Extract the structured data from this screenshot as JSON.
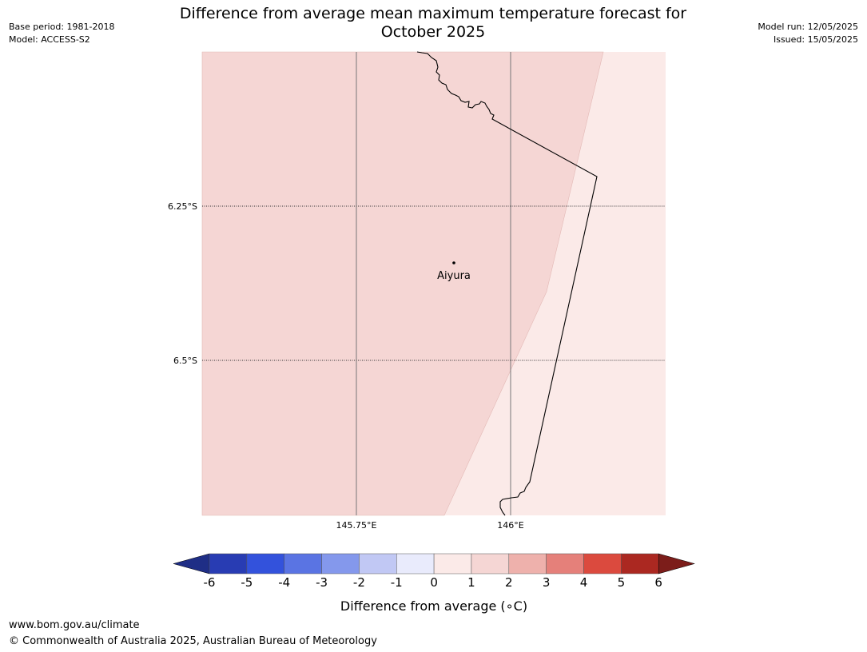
{
  "header": {
    "base_period": "Base period: 1981-2018",
    "model": "Model: ACCESS-S2",
    "title_line1": "Difference from average mean maximum temperature forecast for",
    "title_line2": "October 2025",
    "model_run": "Model run: 12/05/2025",
    "issued": "Issued: 15/05/2025"
  },
  "map": {
    "place_label": "Aiyura",
    "lat_labels": [
      "6.25°S",
      "6.5°S"
    ],
    "lon_labels": [
      "145.75°E",
      "146°E"
    ],
    "region_colors": {
      "band_1_to_2": "#f5d6d4",
      "band_0_to_1": "#fbeae8"
    }
  },
  "legend": {
    "title": "Difference from average (∘C)",
    "ticks": [
      "-6",
      "-5",
      "-4",
      "-3",
      "-2",
      "-1",
      "0",
      "1",
      "2",
      "3",
      "4",
      "5",
      "6"
    ],
    "colors": [
      "#1f2e86",
      "#283cb3",
      "#3352dc",
      "#5a74e3",
      "#8498ec",
      "#c1c8f4",
      "#e9ebfc",
      "#fbeae8",
      "#f5d6d4",
      "#eeb1ac",
      "#e5807a",
      "#db4a3e",
      "#ab2821",
      "#7c1d1a"
    ]
  },
  "footer": {
    "url": "www.bom.gov.au/climate",
    "copyright": "© Commonwealth of Australia 2025, Australian Bureau of Meteorology"
  }
}
